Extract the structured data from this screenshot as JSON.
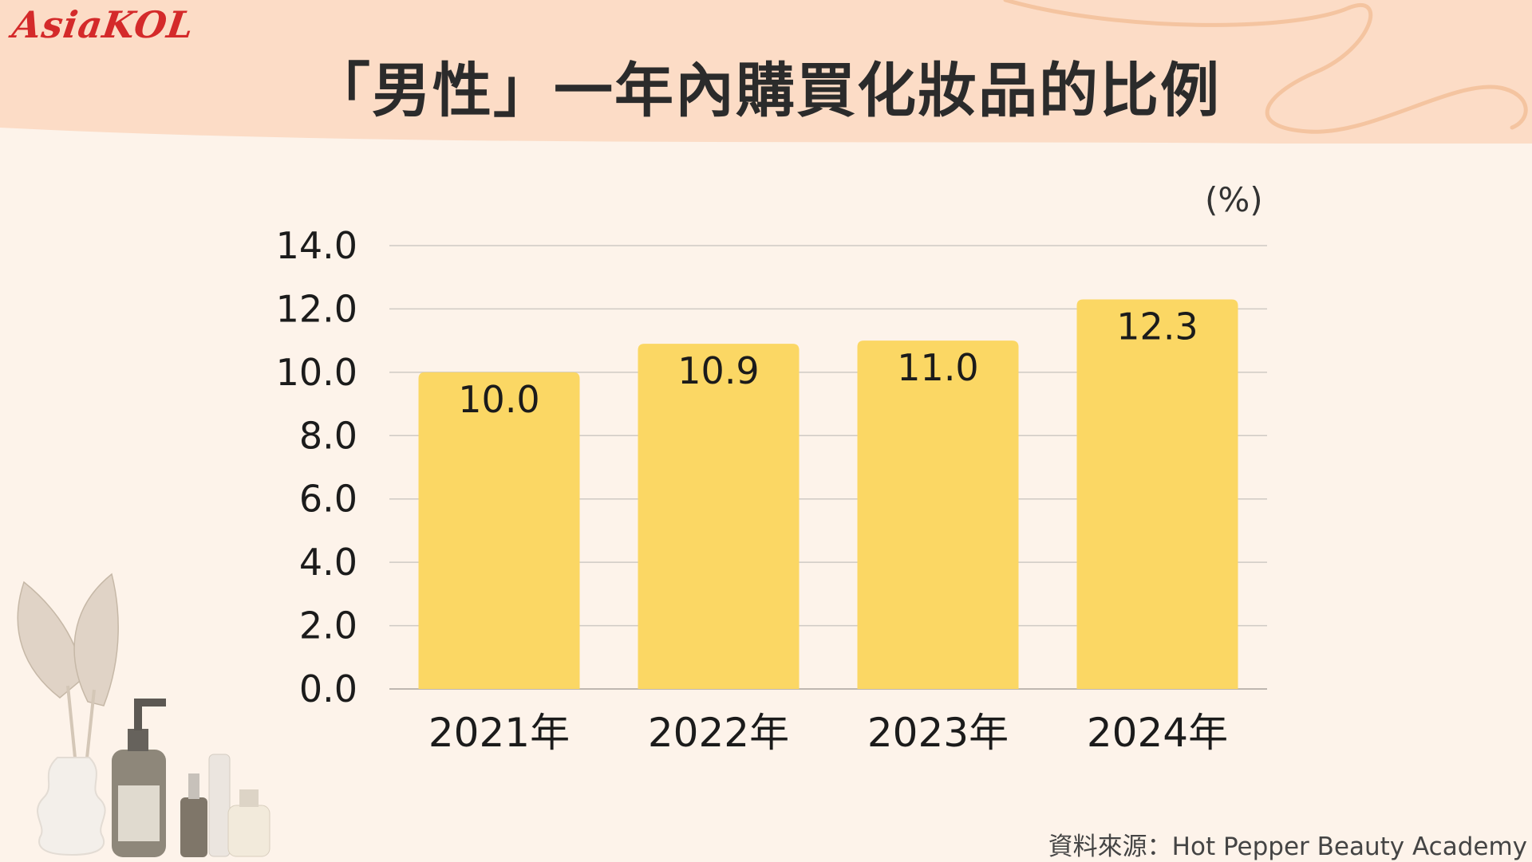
{
  "logo": "AsiaKOL",
  "unit": "(%)",
  "source": "資料來源：Hot Pepper Beauty Academy",
  "colors": {
    "bar": "#fbd764",
    "background": "#fdf3ea",
    "header": "#fcdcc6",
    "grid": "#cfcac4",
    "text": "#1b1b1b"
  },
  "chart_data": {
    "type": "bar",
    "title": "「男性」一年內購買化妝品的比例",
    "categories": [
      "2021年",
      "2022年",
      "2023年",
      "2024年"
    ],
    "values": [
      10.0,
      10.9,
      11.0,
      12.3
    ],
    "value_labels": [
      "10.0",
      "10.9",
      "11.0",
      "12.3"
    ],
    "ylim": [
      0,
      14
    ],
    "yticks": [
      "0.0",
      "2.0",
      "4.0",
      "6.0",
      "8.0",
      "10.0",
      "12.0",
      "14.0"
    ],
    "ytick_values": [
      0,
      2,
      4,
      6,
      8,
      10,
      12,
      14
    ],
    "ylabel": "(%)",
    "xlabel": "",
    "grid": true,
    "legend": "none"
  }
}
